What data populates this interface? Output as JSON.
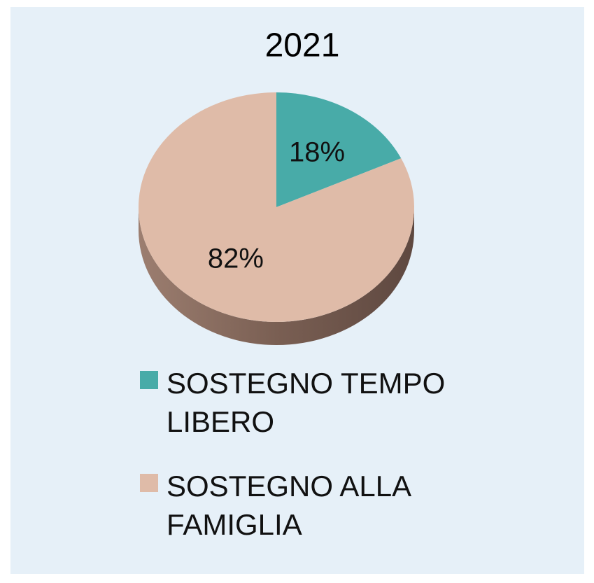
{
  "chart_data": {
    "type": "pie",
    "title": "2021",
    "categories": [
      "SOSTEGNO TEMPO LIBERO",
      "SOSTEGNO ALLA FAMIGLIA"
    ],
    "values": [
      18,
      82
    ],
    "value_labels": [
      "18%",
      "82%"
    ],
    "colors": [
      "#48aba8",
      "#dfbba8"
    ],
    "legend": "bottom"
  }
}
